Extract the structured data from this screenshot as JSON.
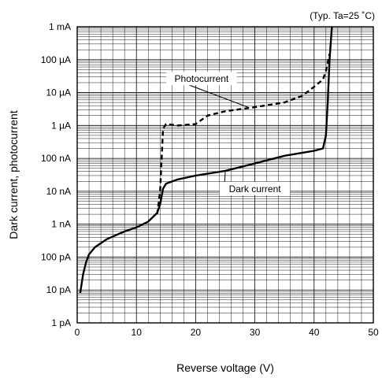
{
  "chart_data": {
    "type": "line",
    "title": "",
    "annotation": "(Typ. Ta=25 ˚C)",
    "xlabel": "Reverse voltage (V)",
    "ylabel": "Dark current, photocurrent",
    "xlim": [
      0,
      50
    ],
    "ylim": [
      1e-12,
      0.001
    ],
    "yscale": "log",
    "grid": true,
    "x_ticks": [
      0,
      10,
      20,
      30,
      40,
      50
    ],
    "x_tick_labels": [
      "0",
      "10",
      "20",
      "30",
      "40",
      "50"
    ],
    "y_ticks": [
      1e-12,
      1e-11,
      1e-10,
      1e-09,
      1e-08,
      1e-07,
      1e-06,
      1e-05,
      0.0001,
      0.001
    ],
    "y_tick_labels": [
      "1 pA",
      "10 pA",
      "100 pA",
      "1 nA",
      "10 nA",
      "100 nA",
      "1 µA",
      "10 µA",
      "100 µA",
      "1 mA"
    ],
    "series": [
      {
        "name": "Dark current",
        "style": "solid",
        "color": "#000000",
        "label_anchor": [
          25,
          4e-08
        ],
        "label_pos": [
          30,
          1e-08
        ],
        "points": [
          [
            0.5,
            8e-12
          ],
          [
            1,
            3e-11
          ],
          [
            1.5,
            7e-11
          ],
          [
            2,
            1.2e-10
          ],
          [
            3,
            2e-10
          ],
          [
            5,
            3.5e-10
          ],
          [
            8,
            6e-10
          ],
          [
            10,
            8e-10
          ],
          [
            12,
            1.2e-09
          ],
          [
            13.5,
            2.2e-09
          ],
          [
            14,
            4e-09
          ],
          [
            14.5,
            1.2e-08
          ],
          [
            15,
            1.7e-08
          ],
          [
            17,
            2.3e-08
          ],
          [
            20,
            3e-08
          ],
          [
            25,
            4.2e-08
          ],
          [
            30,
            7e-08
          ],
          [
            35,
            1.2e-07
          ],
          [
            40,
            1.7e-07
          ],
          [
            41.5,
            2e-07
          ],
          [
            42,
            5e-07
          ],
          [
            42.3,
            5e-06
          ],
          [
            42.6,
            0.0001
          ],
          [
            43,
            0.001
          ]
        ]
      },
      {
        "name": "Photocurrent",
        "style": "dashed",
        "color": "#000000",
        "label_anchor": [
          29,
          3.5e-06
        ],
        "label_pos": [
          21,
          2.2e-05
        ],
        "points": [
          [
            13.5,
            2e-09
          ],
          [
            14,
            1e-08
          ],
          [
            14.5,
            8e-07
          ],
          [
            15,
            1.1e-06
          ],
          [
            17,
            1e-06
          ],
          [
            20,
            1.1e-06
          ],
          [
            22,
            2e-06
          ],
          [
            25,
            2.7e-06
          ],
          [
            30,
            3.6e-06
          ],
          [
            35,
            5e-06
          ],
          [
            38,
            8e-06
          ],
          [
            40,
            1.5e-05
          ],
          [
            41.5,
            2.5e-05
          ],
          [
            42,
            4.5e-05
          ],
          [
            42.6,
            0.00015
          ]
        ]
      }
    ]
  }
}
